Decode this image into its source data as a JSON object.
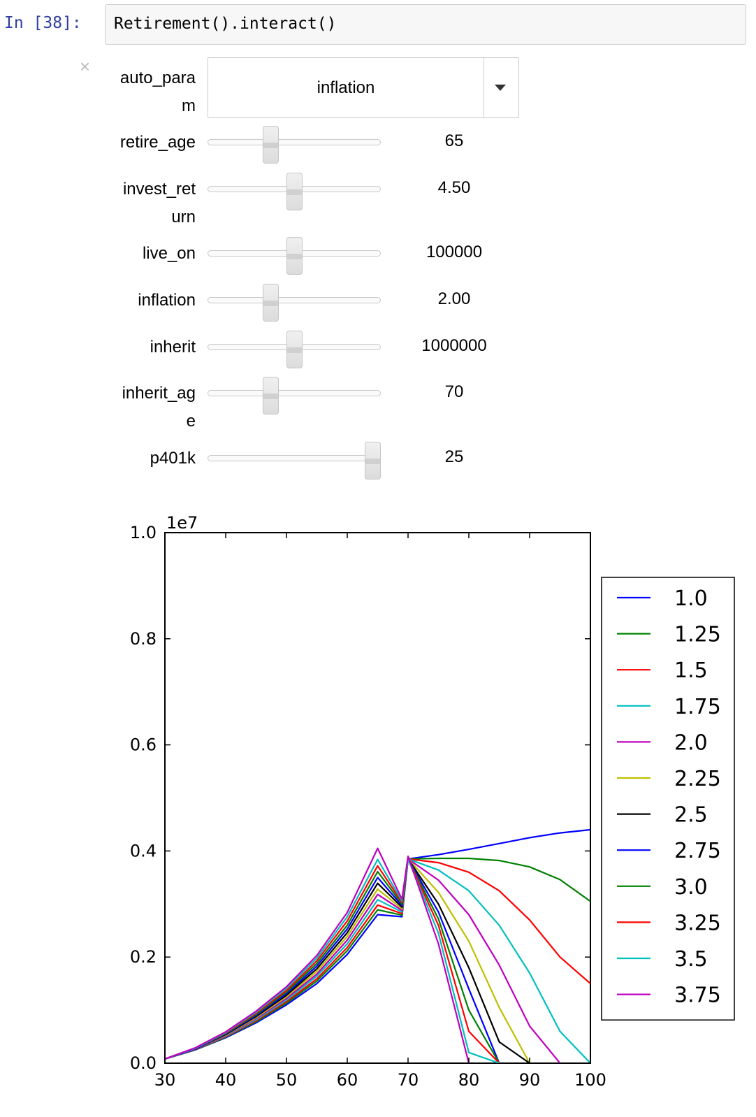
{
  "cell": {
    "prompt": "In [38]:",
    "code": "Retirement().interact()"
  },
  "widgets": {
    "close_glyph": "×",
    "dropdown": {
      "label_line1": "auto_para",
      "label_line2": "m",
      "value": "inflation"
    },
    "sliders": [
      {
        "label_line1": "retire_age",
        "label_line2": "",
        "value": "65",
        "position": 0.35
      },
      {
        "label_line1": "invest_ret",
        "label_line2": "urn",
        "value": "4.50",
        "position": 0.5
      },
      {
        "label_line1": "live_on",
        "label_line2": "",
        "value": "100000",
        "position": 0.5
      },
      {
        "label_line1": "inflation",
        "label_line2": "",
        "value": "2.00",
        "position": 0.35
      },
      {
        "label_line1": "inherit",
        "label_line2": "",
        "value": "1000000",
        "position": 0.5
      },
      {
        "label_line1": "inherit_ag",
        "label_line2": "e",
        "value": "70",
        "position": 0.35
      },
      {
        "label_line1": "p401k",
        "label_line2": "",
        "value": "25",
        "position": 1.0
      }
    ]
  },
  "chart_data": {
    "type": "line",
    "title": "",
    "xlabel": "",
    "ylabel": "",
    "y_offset_label": "1e7",
    "xlim": [
      30,
      100
    ],
    "ylim": [
      0.0,
      1.0
    ],
    "x_ticks": [
      "30",
      "40",
      "50",
      "60",
      "70",
      "80",
      "90",
      "100"
    ],
    "y_ticks": [
      "0.0",
      "0.2",
      "0.4",
      "0.6",
      "0.8",
      "1.0"
    ],
    "grid": false,
    "legend_position": "right",
    "x": [
      30,
      35,
      40,
      45,
      50,
      55,
      60,
      65,
      69,
      70,
      75,
      80,
      85,
      90,
      95,
      100
    ],
    "series": [
      {
        "name": "1.0",
        "color": "#0000ff",
        "values": [
          0.008,
          0.025,
          0.048,
          0.076,
          0.11,
          0.15,
          0.205,
          0.28,
          0.276,
          0.385,
          0.393,
          0.403,
          0.414,
          0.425,
          0.434,
          0.44
        ]
      },
      {
        "name": "1.25",
        "color": "#008000",
        "values": [
          0.008,
          0.025,
          0.049,
          0.078,
          0.113,
          0.155,
          0.212,
          0.289,
          0.279,
          0.385,
          0.386,
          0.386,
          0.382,
          0.37,
          0.346,
          0.305
        ]
      },
      {
        "name": "1.5",
        "color": "#ff0000",
        "values": [
          0.008,
          0.026,
          0.05,
          0.08,
          0.116,
          0.159,
          0.218,
          0.298,
          0.282,
          0.385,
          0.378,
          0.36,
          0.325,
          0.27,
          0.2,
          0.15
        ]
      },
      {
        "name": "1.75",
        "color": "#00bfbf",
        "values": [
          0.008,
          0.026,
          0.051,
          0.082,
          0.119,
          0.164,
          0.225,
          0.308,
          0.285,
          0.385,
          0.364,
          0.325,
          0.26,
          0.17,
          0.06,
          0.0
        ]
      },
      {
        "name": "2.0",
        "color": "#bf00bf",
        "values": [
          0.008,
          0.026,
          0.052,
          0.084,
          0.122,
          0.168,
          0.232,
          0.318,
          0.288,
          0.385,
          0.345,
          0.28,
          0.185,
          0.07,
          0.0,
          null
        ]
      },
      {
        "name": "2.25",
        "color": "#bfbf00",
        "values": [
          0.008,
          0.027,
          0.053,
          0.086,
          0.125,
          0.173,
          0.239,
          0.328,
          0.291,
          0.385,
          0.322,
          0.23,
          0.105,
          0.0,
          null,
          null
        ]
      },
      {
        "name": "2.5",
        "color": "#000000",
        "values": [
          0.008,
          0.027,
          0.054,
          0.088,
          0.128,
          0.178,
          0.246,
          0.339,
          0.294,
          0.385,
          0.3,
          0.18,
          0.04,
          0.0,
          null,
          null
        ]
      },
      {
        "name": "2.75",
        "color": "#0000ff",
        "values": [
          0.008,
          0.027,
          0.055,
          0.09,
          0.131,
          0.183,
          0.253,
          0.35,
          0.297,
          0.385,
          0.285,
          0.14,
          0.0,
          null,
          null,
          null
        ]
      },
      {
        "name": "3.0",
        "color": "#008000",
        "values": [
          0.008,
          0.028,
          0.056,
          0.092,
          0.134,
          0.188,
          0.26,
          0.361,
          0.3,
          0.385,
          0.272,
          0.1,
          0.0,
          null,
          null,
          null
        ]
      },
      {
        "name": "3.25",
        "color": "#ff0000",
        "values": [
          0.008,
          0.028,
          0.057,
          0.094,
          0.137,
          0.193,
          0.268,
          0.372,
          0.303,
          0.385,
          0.26,
          0.06,
          0.0,
          null,
          null,
          null
        ]
      },
      {
        "name": "3.5",
        "color": "#00bfbf",
        "values": [
          0.008,
          0.028,
          0.058,
          0.096,
          0.141,
          0.198,
          0.276,
          0.384,
          0.306,
          0.385,
          0.245,
          0.02,
          0.0,
          null,
          null,
          null
        ]
      },
      {
        "name": "3.75",
        "color": "#bf00bf",
        "values": [
          0.008,
          0.029,
          0.059,
          0.098,
          0.144,
          0.203,
          0.284,
          0.405,
          0.309,
          0.39,
          0.225,
          0.0,
          null,
          null,
          null,
          null
        ]
      }
    ]
  }
}
